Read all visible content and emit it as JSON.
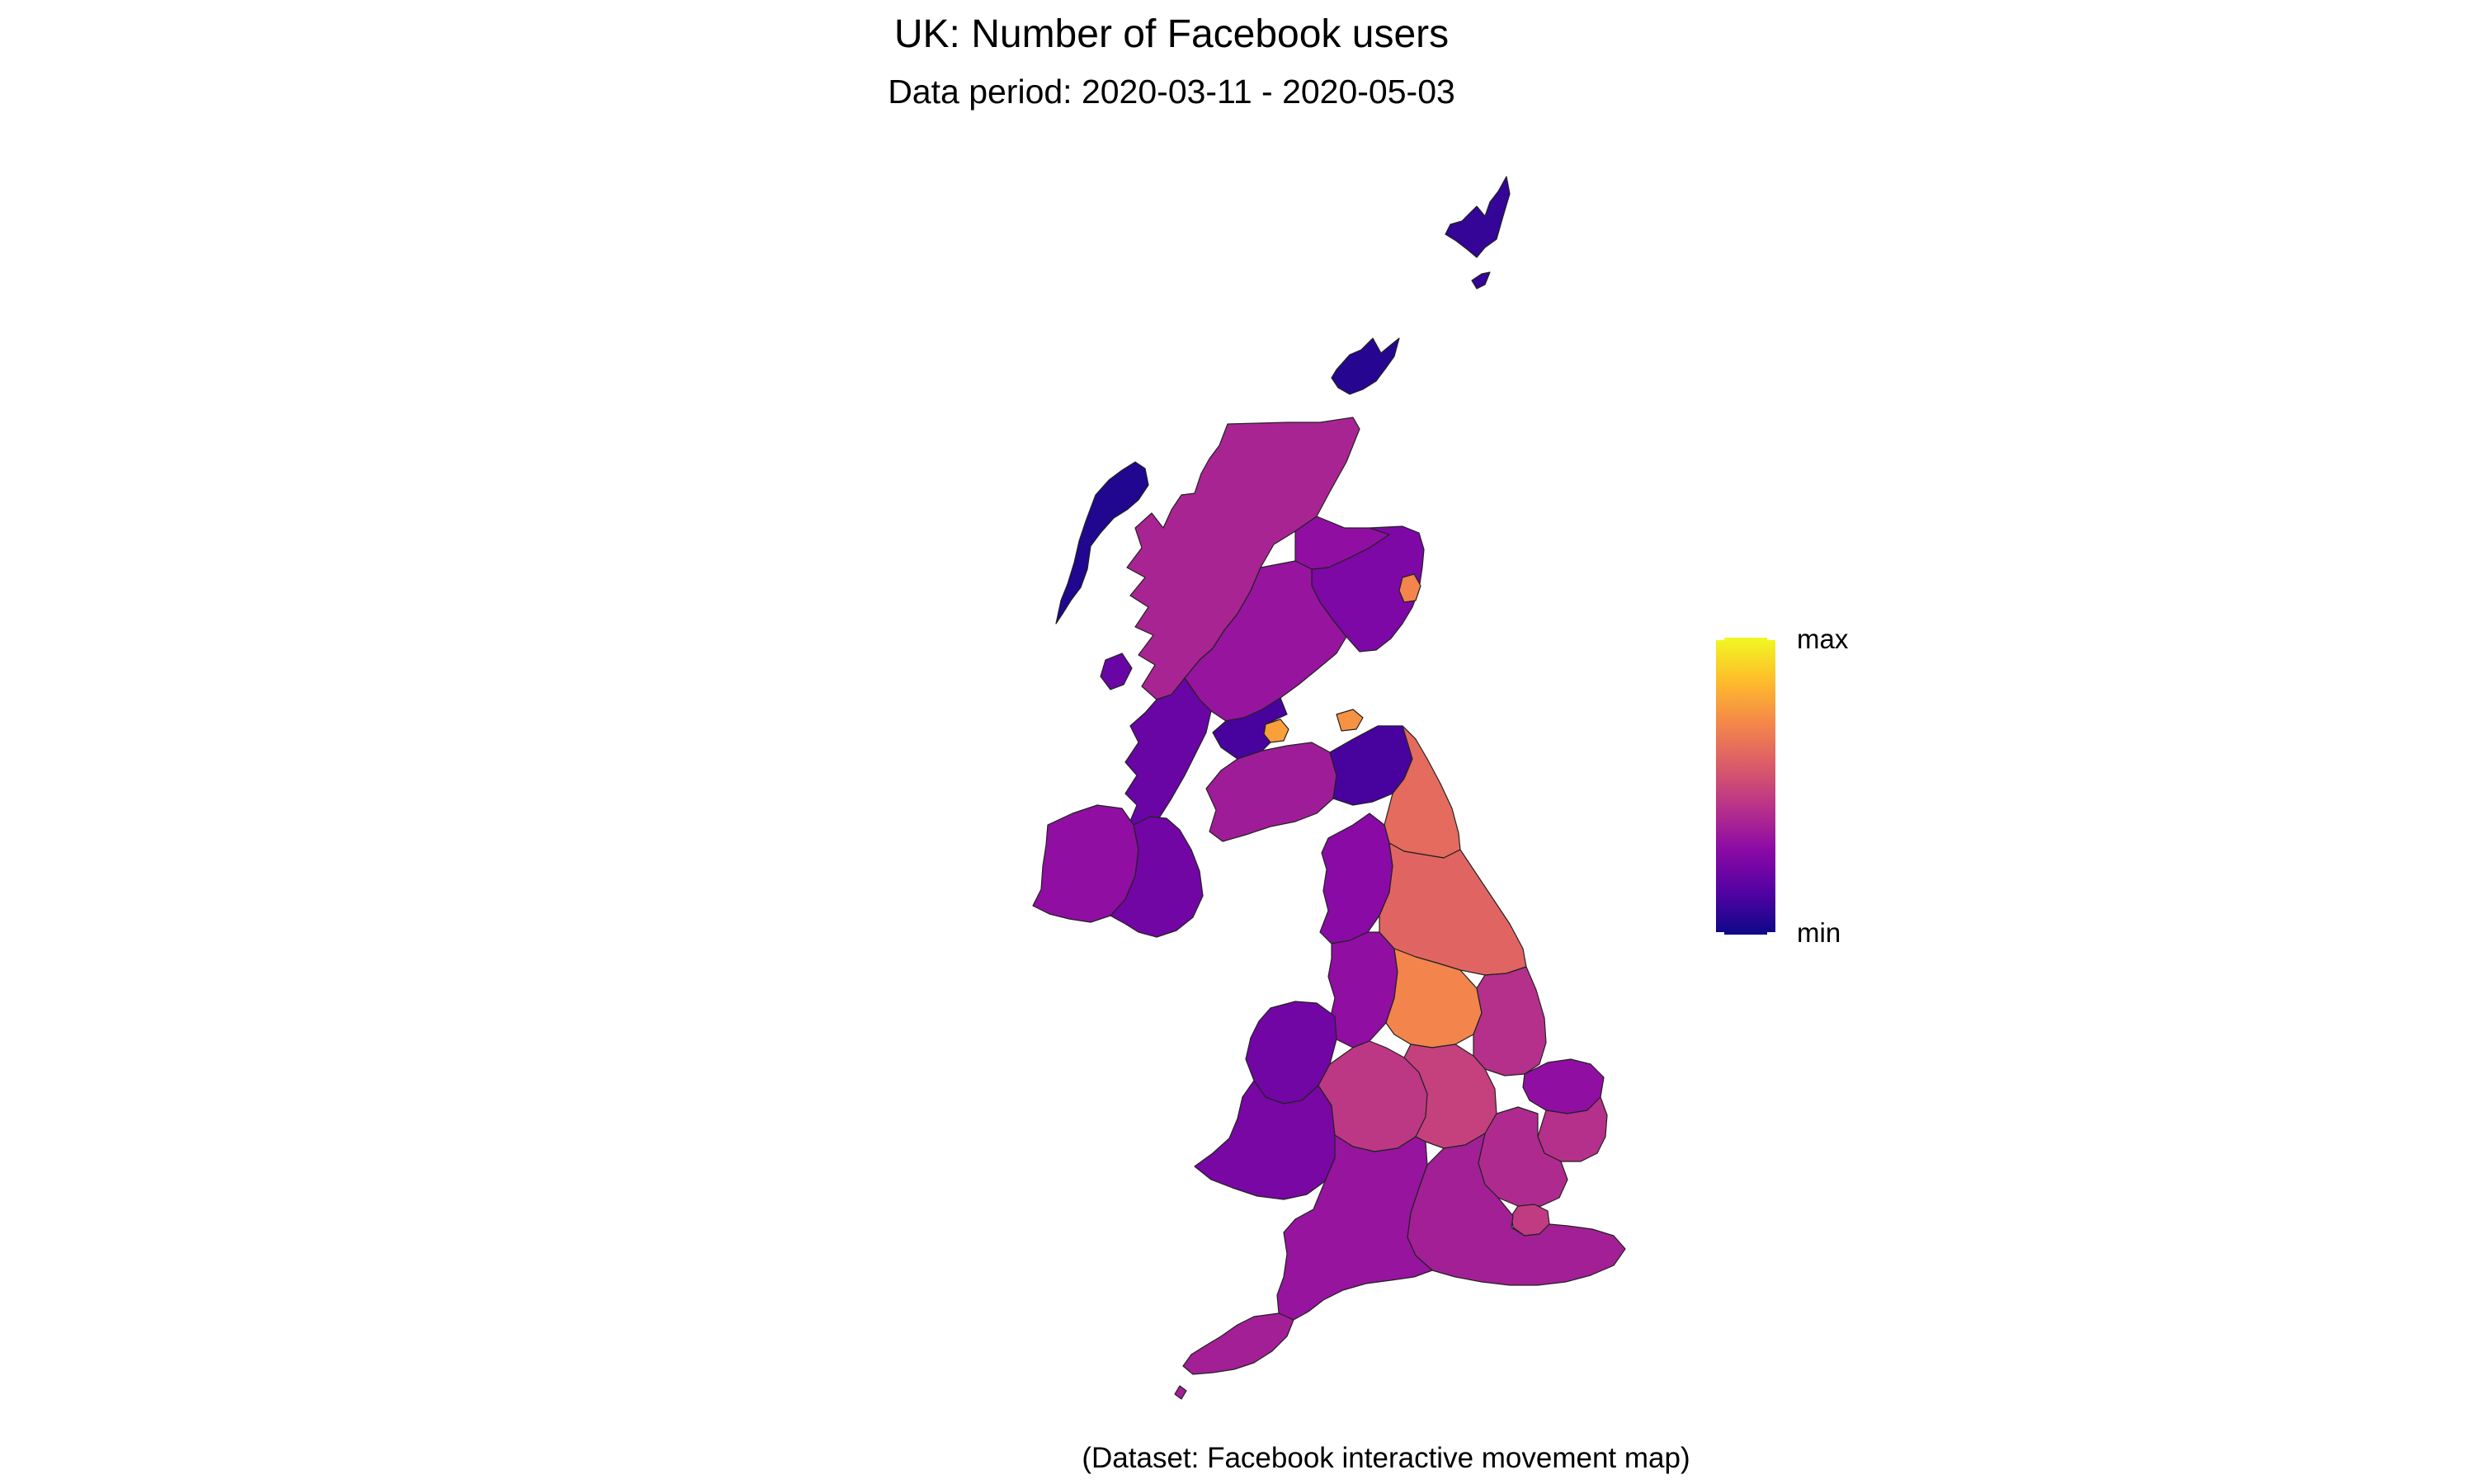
{
  "title": "UK: Number of Facebook users",
  "subtitle": "Data period: 2020-03-11 - 2020-05-03",
  "caption": "(Dataset: Facebook interactive movement map)",
  "legend": {
    "max_label": "max",
    "min_label": "min",
    "colors": [
      "#0d0887",
      "#5302a3",
      "#8b0aa5",
      "#b83289",
      "#db5c68",
      "#f48849",
      "#febd2a",
      "#f0f921"
    ]
  },
  "map": {
    "colorscale": "plasma",
    "regions": [
      {
        "name": "Shetland",
        "level": 0.08
      },
      {
        "name": "Orkney",
        "level": 0.05
      },
      {
        "name": "Outer Hebrides",
        "level": 0.04
      },
      {
        "name": "Highland",
        "level": 0.38
      },
      {
        "name": "Aberdeenshire",
        "level": 0.25
      },
      {
        "name": "Aberdeen City",
        "level": 0.7
      },
      {
        "name": "Moray",
        "level": 0.3
      },
      {
        "name": "Perth and Kinross",
        "level": 0.32
      },
      {
        "name": "Argyll and Bute",
        "level": 0.2
      },
      {
        "name": "Glasgow",
        "level": 0.78
      },
      {
        "name": "Edinburgh",
        "level": 0.74
      },
      {
        "name": "Dumfries and Galloway",
        "level": 0.35
      },
      {
        "name": "Scottish Borders",
        "level": 0.12
      },
      {
        "name": "Northumberland",
        "level": 0.62
      },
      {
        "name": "Northern Ireland West",
        "level": 0.3
      },
      {
        "name": "Northern Ireland East",
        "level": 0.22
      },
      {
        "name": "Cumbria",
        "level": 0.28
      },
      {
        "name": "North Yorkshire",
        "level": 0.6
      },
      {
        "name": "Lancashire",
        "level": 0.3
      },
      {
        "name": "West Yorkshire",
        "level": 0.7
      },
      {
        "name": "Lincolnshire",
        "level": 0.42
      },
      {
        "name": "North Wales",
        "level": 0.22
      },
      {
        "name": "South Wales",
        "level": 0.24
      },
      {
        "name": "West Midlands",
        "level": 0.45
      },
      {
        "name": "East Midlands",
        "level": 0.48
      },
      {
        "name": "Norfolk",
        "level": 0.3
      },
      {
        "name": "Suffolk",
        "level": 0.42
      },
      {
        "name": "East of England",
        "level": 0.4
      },
      {
        "name": "London",
        "level": 0.46
      },
      {
        "name": "South East",
        "level": 0.36
      },
      {
        "name": "South West",
        "level": 0.32
      },
      {
        "name": "Cornwall",
        "level": 0.36
      }
    ]
  }
}
